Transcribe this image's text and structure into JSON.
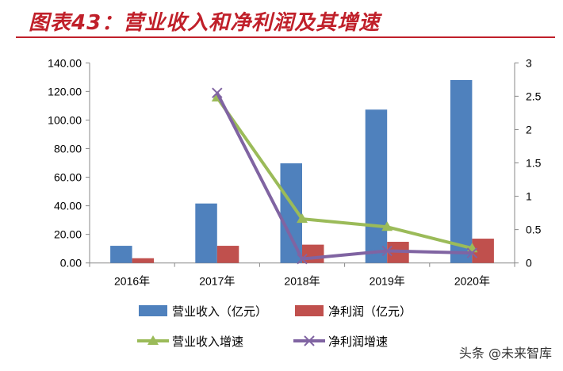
{
  "title": "图表43：营业收入和净利润及其增速",
  "watermark": "头条 @未来智库",
  "chart_data": {
    "type": "bar+line",
    "categories": [
      "2016年",
      "2017年",
      "2018年",
      "2019年",
      "2020年"
    ],
    "left_axis": {
      "ylim": [
        0,
        140
      ],
      "ticks": [
        "0.00",
        "20.00",
        "40.00",
        "60.00",
        "80.00",
        "100.00",
        "120.00",
        "140.00"
      ]
    },
    "right_axis": {
      "ylim": [
        0,
        3
      ],
      "ticks": [
        "0",
        "0.5",
        "1",
        "1.5",
        "2",
        "2.5",
        "3"
      ]
    },
    "series": [
      {
        "name": "营业收入（亿元）",
        "type": "bar",
        "axis": "left",
        "color": "#4f81bd",
        "values": [
          12.0,
          41.6,
          69.7,
          107.3,
          128.0
        ]
      },
      {
        "name": "净利润（亿元）",
        "type": "bar",
        "axis": "left",
        "color": "#c0504d",
        "values": [
          3.3,
          12.0,
          12.8,
          14.8,
          17.0
        ]
      },
      {
        "name": "营业收入增速",
        "type": "line",
        "axis": "right",
        "color": "#9bbb59",
        "marker": "triangle",
        "values": [
          null,
          2.48,
          0.66,
          0.54,
          0.22
        ]
      },
      {
        "name": "净利润增速",
        "type": "line",
        "axis": "right",
        "color": "#8064a2",
        "marker": "x",
        "values": [
          null,
          2.55,
          0.06,
          0.18,
          0.15
        ]
      }
    ],
    "grid": false,
    "legend": "bottom"
  }
}
